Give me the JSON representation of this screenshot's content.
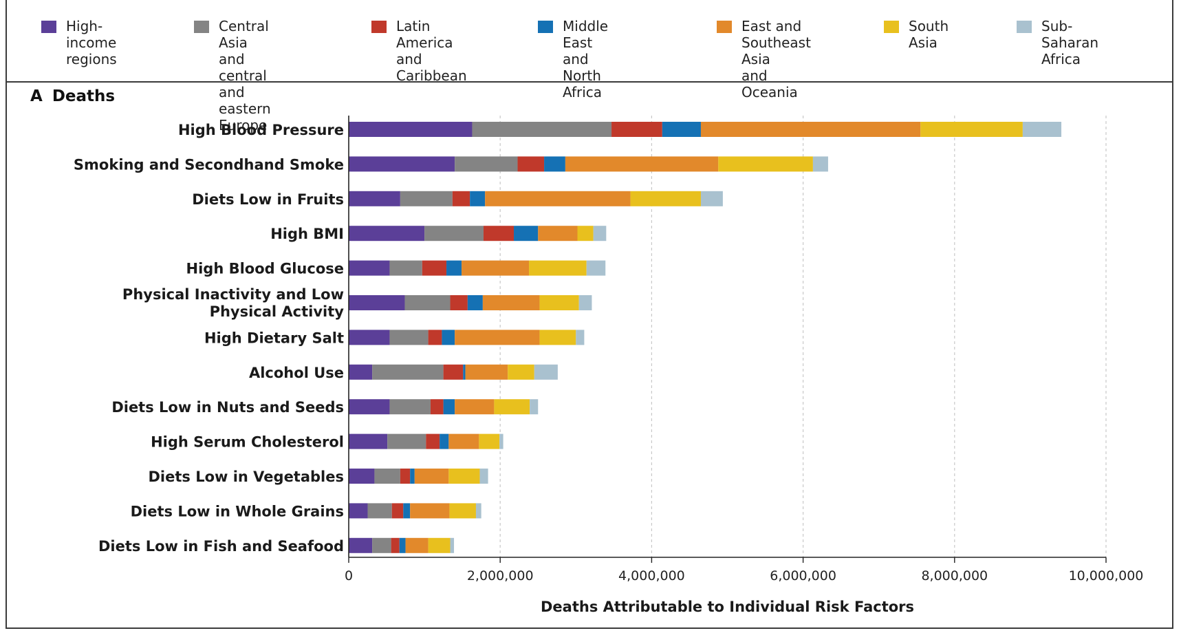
{
  "panel": {
    "letter": "A",
    "title": "Deaths"
  },
  "colors": {
    "High-income regions": "#5b3f98",
    "Central Asia and central and eastern Europe": "#848484",
    "Latin America and Caribbean": "#c0392b",
    "Middle East and North Africa": "#1571b4",
    "East and Southeast Asia and Oceania": "#e2892b",
    "South Asia": "#e8c01e",
    "Sub-Saharan Africa": "#a9c1cf"
  },
  "legend": [
    {
      "label": "High-income\nregions",
      "color": "#5b3f98"
    },
    {
      "label": "Central Asia\nand central and\neastern Europe",
      "color": "#848484"
    },
    {
      "label": "Latin America\nand Caribbean",
      "color": "#c0392b"
    },
    {
      "label": "Middle East and\nNorth Africa",
      "color": "#1571b4"
    },
    {
      "label": "East and\nSoutheast Asia\nand Oceania",
      "color": "#e2892b"
    },
    {
      "label": "South Asia",
      "color": "#e8c01e"
    },
    {
      "label": "Sub-Saharan\nAfrica",
      "color": "#a9c1cf"
    }
  ],
  "chart_data": {
    "type": "bar",
    "orientation": "horizontal",
    "stacked": true,
    "title": "Deaths",
    "xlabel": "Deaths Attributable to Individual Risk Factors",
    "xlim": [
      0,
      10000000
    ],
    "xticks": [
      0,
      2000000,
      4000000,
      6000000,
      8000000,
      10000000
    ],
    "xtick_labels": [
      "0",
      "2,000,000",
      "4,000,000",
      "6,000,000",
      "8,000,000",
      "10,000,000"
    ],
    "grid": "vertical dashed",
    "legend_position": "top",
    "categories": [
      "High Blood Pressure",
      "Smoking and Secondhand Smoke",
      "Diets Low in Fruits",
      "High BMI",
      "High Blood Glucose",
      "Physical Inactivity and Low\nPhysical Activity",
      "High Dietary Salt",
      "Alcohol Use",
      "Diets Low in Nuts and Seeds",
      "High Serum Cholesterol",
      "Diets Low in Vegetables",
      "Diets Low in Whole Grains",
      "Diets Low in Fish and Seafood"
    ],
    "series": [
      {
        "name": "High-income regions",
        "color": "#5b3f98",
        "values": [
          1630000,
          1400000,
          680000,
          1000000,
          540000,
          740000,
          540000,
          310000,
          540000,
          510000,
          340000,
          250000,
          310000
        ]
      },
      {
        "name": "Central Asia and central and eastern Europe",
        "color": "#848484",
        "values": [
          1840000,
          830000,
          690000,
          780000,
          430000,
          600000,
          510000,
          940000,
          540000,
          510000,
          340000,
          320000,
          250000
        ]
      },
      {
        "name": "Latin America and Caribbean",
        "color": "#c0392b",
        "values": [
          670000,
          350000,
          230000,
          400000,
          320000,
          230000,
          180000,
          260000,
          170000,
          180000,
          130000,
          150000,
          110000
        ]
      },
      {
        "name": "Middle East and North Africa",
        "color": "#1571b4",
        "values": [
          510000,
          280000,
          200000,
          320000,
          200000,
          200000,
          170000,
          30000,
          150000,
          120000,
          60000,
          90000,
          80000
        ]
      },
      {
        "name": "East and Southeast Asia and Oceania",
        "color": "#e2892b",
        "values": [
          2900000,
          2020000,
          1920000,
          520000,
          890000,
          750000,
          1120000,
          560000,
          520000,
          400000,
          450000,
          520000,
          300000
        ]
      },
      {
        "name": "South Asia",
        "color": "#e8c01e",
        "values": [
          1350000,
          1250000,
          930000,
          210000,
          760000,
          520000,
          480000,
          350000,
          470000,
          270000,
          410000,
          350000,
          290000
        ]
      },
      {
        "name": "Sub-Saharan Africa",
        "color": "#a9c1cf",
        "values": [
          510000,
          200000,
          290000,
          170000,
          250000,
          170000,
          110000,
          310000,
          110000,
          50000,
          110000,
          70000,
          50000
        ]
      }
    ]
  }
}
